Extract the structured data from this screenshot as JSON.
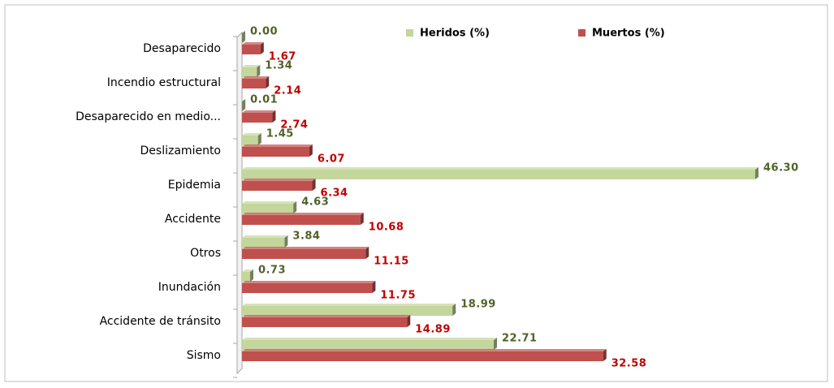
{
  "chart_data": {
    "type": "hbar",
    "categories": [
      "Desaparecido",
      "Incendio estructural",
      "Desaparecido en medio...",
      "Deslizamiento",
      "Epidemia",
      "Accidente",
      "Otros",
      "Inundación",
      "Accidente de tránsito",
      "Sismo"
    ],
    "series": [
      {
        "name": "Heridos (%)",
        "color": "#c3d69b",
        "label_color": "#4f6228",
        "values": [
          0,
          1.34,
          0.01,
          1.45,
          46.3,
          4.63,
          3.84,
          0.73,
          18.99,
          22.71
        ],
        "value_labels": [
          "0.00",
          "1.34",
          "0.01",
          "1.45",
          "46.30",
          "4.63",
          "3.84",
          "0.73",
          "18.99",
          "22.71"
        ]
      },
      {
        "name": "Muertos (%)",
        "color": "#c0504d",
        "label_color": "#c00000",
        "values": [
          1.67,
          2.14,
          2.74,
          6.07,
          6.34,
          10.68,
          11.15,
          11.75,
          14.89,
          32.58
        ],
        "value_labels": [
          "1.67",
          "2.14",
          "2.74",
          "6.07",
          "6.34",
          "10.68",
          "11.15",
          "11.75",
          "14.89",
          "32.58"
        ]
      }
    ],
    "legend": "top"
  }
}
